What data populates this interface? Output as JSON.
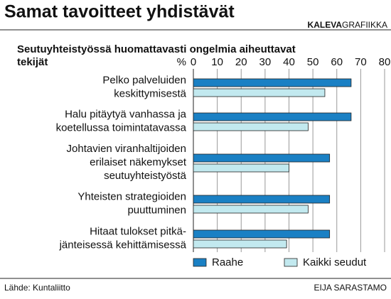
{
  "chart_data": {
    "type": "hbar",
    "title": "Samat tavoitteet yhdistävät",
    "brand": [
      "KALEVA",
      "GRAFIIKKA"
    ],
    "subtitle": [
      "Seutuyhteistyössä huomattavasti ongelmia aiheuttavat",
      "tekijät"
    ],
    "unit": "%",
    "categories": [
      [
        "Pelko palveluiden",
        "keskittymisestä"
      ],
      [
        "Halu pitäytyä vanhassa ja",
        "koetellussa toimintatavassa"
      ],
      [
        "Johtavien viranhaltijoiden",
        "erilaiset näkemykset",
        "seutuyhteistyöstä"
      ],
      [
        "Yhteisten strategioiden",
        "puuttuminen"
      ],
      [
        "Hitaat tulokset pitkä-",
        "jänteisessä kehittämisessä"
      ]
    ],
    "series": [
      {
        "name": "Raahe",
        "color": "#1a80c4",
        "values": [
          66,
          66,
          57,
          57,
          57
        ]
      },
      {
        "name": "Kaikki seudut",
        "color": "#c2e9ef",
        "values": [
          55,
          48,
          40,
          48,
          39
        ]
      }
    ],
    "xlim": [
      0,
      80
    ],
    "xticks": [
      0,
      10,
      20,
      30,
      40,
      50,
      60,
      70,
      80
    ],
    "grid": true,
    "source": "Lähde: Kuntaliitto",
    "author": "EIJA SARASTAMO"
  }
}
